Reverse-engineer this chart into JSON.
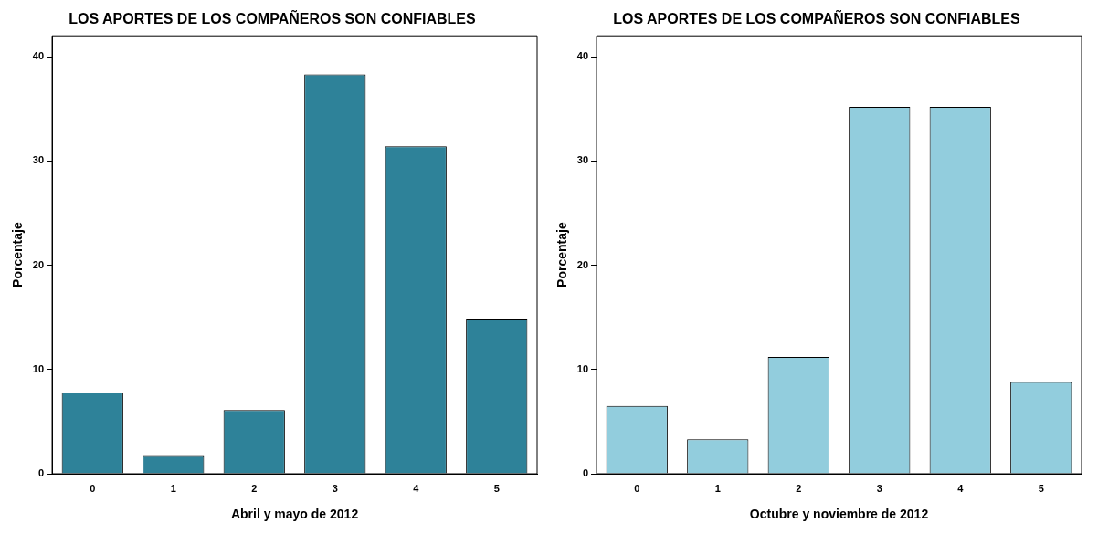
{
  "chart_data": [
    {
      "type": "bar",
      "title": "LOS APORTES DE LOS COMPAÑEROS SON CONFIABLES",
      "xlabel": "Abril y mayo de 2012",
      "ylabel": "Porcentaje",
      "categories": [
        "0",
        "1",
        "2",
        "3",
        "4",
        "5"
      ],
      "values": [
        7.8,
        1.7,
        6.1,
        38.3,
        31.4,
        14.8
      ],
      "color": "#2e8299",
      "ylim": [
        0,
        42
      ],
      "yticks": [
        0,
        10,
        20,
        30,
        40
      ],
      "grid": false
    },
    {
      "type": "bar",
      "title": "LOS APORTES DE LOS COMPAÑEROS SON CONFIABLES",
      "xlabel": "Octubre y noviembre de 2012",
      "ylabel": "Porcentaje",
      "categories": [
        "0",
        "1",
        "2",
        "3",
        "4",
        "5"
      ],
      "values": [
        6.5,
        3.3,
        11.2,
        35.2,
        35.2,
        8.8
      ],
      "color": "#92cddd",
      "ylim": [
        0,
        42
      ],
      "yticks": [
        0,
        10,
        20,
        30,
        40
      ],
      "grid": false
    }
  ]
}
